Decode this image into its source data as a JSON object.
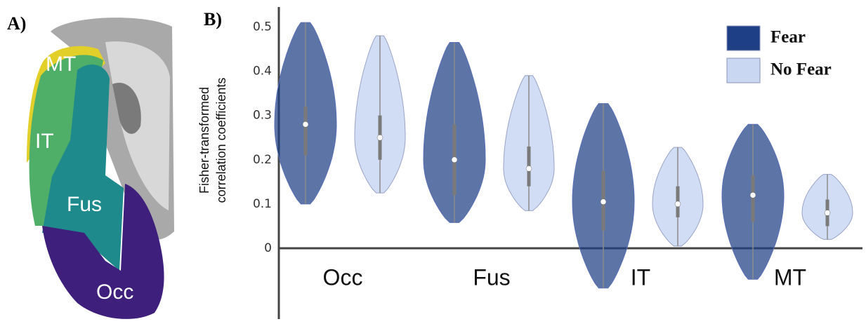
{
  "panel_a": {
    "label": "A)",
    "regions": [
      "MT",
      "IT",
      "Fus",
      "Occ"
    ]
  },
  "chart_data": {
    "type": "violin",
    "panel_label": "B)",
    "y_label": [
      "Fisher-transformed",
      "correlation coefficients"
    ],
    "categories": [
      "Occ",
      "Fus",
      "IT",
      "MT"
    ],
    "ylim": [
      -0.16,
      0.545
    ],
    "yticks": [
      0,
      0.1,
      0.2,
      0.3,
      0.4,
      0.5
    ],
    "legend": "top-right",
    "series": [
      {
        "name": "Fear",
        "color": "#1e3e85",
        "min": [
          0.1,
          0.058,
          -0.09,
          -0.07
        ],
        "q1": [
          0.21,
          0.12,
          0.04,
          0.06
        ],
        "median": [
          0.28,
          0.2,
          0.105,
          0.12
        ],
        "q3": [
          0.32,
          0.28,
          0.175,
          0.165
        ],
        "max": [
          0.51,
          0.465,
          0.327,
          0.28
        ]
      },
      {
        "name": "No Fear",
        "color": "#c9d7f2",
        "min": [
          0.125,
          0.085,
          0.005,
          0.02
        ],
        "q1": [
          0.2,
          0.14,
          0.07,
          0.05
        ],
        "median": [
          0.25,
          0.18,
          0.1,
          0.08
        ],
        "q3": [
          0.3,
          0.23,
          0.14,
          0.11
        ],
        "max": [
          0.48,
          0.39,
          0.228,
          0.167
        ]
      }
    ]
  }
}
